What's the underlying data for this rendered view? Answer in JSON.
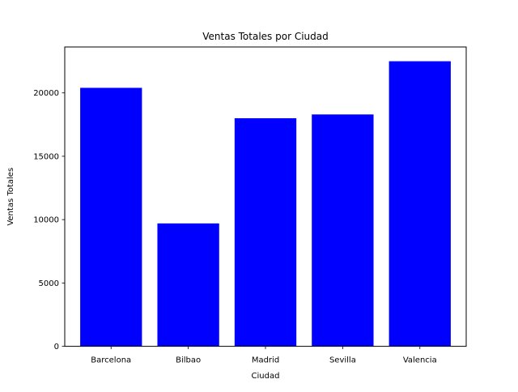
{
  "chart_data": {
    "type": "bar",
    "title": "Ventas Totales por Ciudad",
    "xlabel": "Ciudad",
    "ylabel": "Ventas Totales",
    "categories": [
      "Barcelona",
      "Bilbao",
      "Madrid",
      "Sevilla",
      "Valencia"
    ],
    "values": [
      20400,
      9700,
      18000,
      18300,
      22500
    ],
    "ylim": [
      0,
      23625
    ],
    "yticks": [
      0,
      5000,
      10000,
      15000,
      20000
    ],
    "bar_color": "#0000ff",
    "grid": false,
    "legend": "none"
  }
}
